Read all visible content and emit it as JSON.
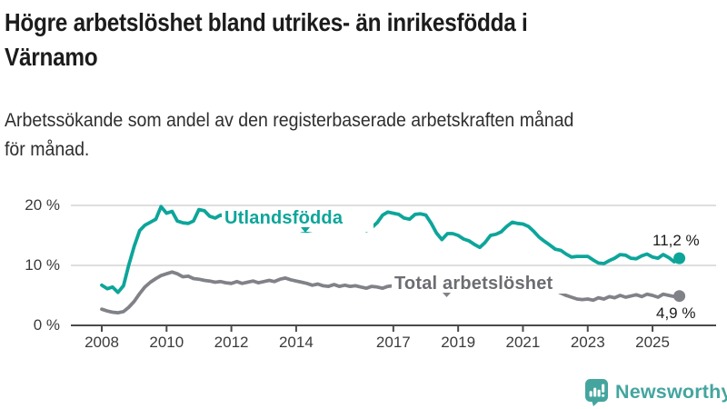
{
  "header": {
    "title_lines": [
      "Högre arbetslöshet bland utrikes- än inrikesfödda i",
      "Värnamo"
    ],
    "subtitle_lines": [
      "Arbetssökande som andel av den registerbaserade arbetskraften månad",
      "för månad."
    ]
  },
  "chart_data": {
    "type": "line",
    "title": "Högre arbetslöshet bland utrikes- än inrikesfödda i Värnamo",
    "subtitle": "Arbetssökande som andel av den registerbaserade arbetskraften månad för månad.",
    "unit": "%",
    "grid": "horizontal",
    "legend_position": "inline-labels",
    "xlim": [
      2008,
      2026
    ],
    "ylim": [
      0,
      21.5
    ],
    "xticks": [
      2008,
      2010,
      2012,
      2014,
      2017,
      2019,
      2021,
      2023,
      2025
    ],
    "xtick_labels": [
      "2008",
      "2010",
      "2012",
      "2014",
      "2017",
      "2019",
      "2021",
      "2023",
      "2025"
    ],
    "yticks": [
      0,
      10,
      20
    ],
    "ytick_labels": [
      "0 %",
      "10 %",
      "20 %"
    ],
    "x": [
      2008.0,
      2008.17,
      2008.33,
      2008.5,
      2008.67,
      2008.83,
      2009.0,
      2009.17,
      2009.33,
      2009.5,
      2009.67,
      2009.83,
      2010.0,
      2010.17,
      2010.33,
      2010.5,
      2010.67,
      2010.83,
      2011.0,
      2011.17,
      2011.33,
      2011.5,
      2011.67,
      2011.83,
      2012.0,
      2012.17,
      2012.33,
      2012.5,
      2012.67,
      2012.83,
      2013.0,
      2013.17,
      2013.33,
      2013.5,
      2013.67,
      2013.83,
      2014.0,
      2014.17,
      2014.33,
      2014.5,
      2014.67,
      2014.83,
      2015.0,
      2015.17,
      2015.33,
      2015.5,
      2015.67,
      2015.83,
      2016.0,
      2016.17,
      2016.33,
      2016.5,
      2016.67,
      2016.83,
      2017.0,
      2017.17,
      2017.33,
      2017.5,
      2017.67,
      2017.83,
      2018.0,
      2018.17,
      2018.33,
      2018.5,
      2018.67,
      2018.83,
      2019.0,
      2019.17,
      2019.33,
      2019.5,
      2019.67,
      2019.83,
      2020.0,
      2020.17,
      2020.33,
      2020.5,
      2020.67,
      2020.83,
      2021.0,
      2021.17,
      2021.33,
      2021.5,
      2021.67,
      2021.83,
      2022.0,
      2022.17,
      2022.33,
      2022.5,
      2022.67,
      2022.83,
      2023.0,
      2023.17,
      2023.33,
      2023.5,
      2023.67,
      2023.83,
      2024.0,
      2024.17,
      2024.33,
      2024.5,
      2024.67,
      2024.83,
      2025.0,
      2025.17,
      2025.33,
      2025.5,
      2025.67,
      2025.83
    ],
    "series": [
      {
        "name": "Utlandsfödda",
        "color": "#0da59a",
        "label_color": "#0da59a",
        "end_label": "11,2 %",
        "end_value": 11.2,
        "values": [
          6.7,
          6.1,
          6.4,
          5.5,
          6.6,
          10.0,
          13.2,
          15.8,
          16.7,
          17.2,
          17.7,
          19.8,
          18.7,
          19.0,
          17.4,
          17.1,
          17.0,
          17.4,
          19.3,
          19.1,
          18.2,
          17.9,
          18.4,
          18.1,
          18.3,
          18.6,
          18.0,
          17.8,
          18.1,
          17.6,
          17.4,
          17.6,
          17.1,
          16.8,
          16.5,
          16.4,
          16.2,
          15.8,
          15.7,
          15.9,
          16.1,
          16.3,
          16.4,
          16.2,
          16.5,
          16.0,
          16.2,
          16.4,
          16.6,
          15.8,
          16.3,
          17.1,
          18.4,
          18.9,
          18.7,
          18.5,
          17.9,
          17.7,
          18.5,
          18.6,
          18.4,
          17.0,
          15.4,
          14.3,
          15.3,
          15.3,
          15.0,
          14.4,
          14.1,
          13.5,
          13.0,
          13.8,
          15.0,
          15.2,
          15.6,
          16.5,
          17.2,
          17.0,
          16.9,
          16.5,
          15.7,
          14.7,
          14.0,
          13.4,
          12.7,
          12.5,
          11.9,
          11.4,
          11.5,
          11.5,
          11.5,
          10.9,
          10.4,
          10.3,
          10.8,
          11.2,
          11.8,
          11.7,
          11.2,
          11.1,
          11.6,
          11.9,
          11.4,
          11.2,
          11.8,
          11.3,
          10.6,
          11.2
        ]
      },
      {
        "name": "Total arbetslöshet",
        "color": "#818288",
        "label_color": "#6c6d72",
        "end_label": "4,9 %",
        "end_value": 4.9,
        "values": [
          2.7,
          2.4,
          2.2,
          2.1,
          2.3,
          3.0,
          4.0,
          5.3,
          6.4,
          7.2,
          7.8,
          8.3,
          8.6,
          8.9,
          8.6,
          8.1,
          8.2,
          7.8,
          7.7,
          7.5,
          7.4,
          7.2,
          7.3,
          7.1,
          7.0,
          7.3,
          7.0,
          7.2,
          7.4,
          7.1,
          7.3,
          7.5,
          7.3,
          7.7,
          7.9,
          7.6,
          7.4,
          7.2,
          7.0,
          6.7,
          6.9,
          6.6,
          6.5,
          6.8,
          6.5,
          6.7,
          6.5,
          6.6,
          6.4,
          6.2,
          6.5,
          6.4,
          6.2,
          6.5,
          6.6,
          6.5,
          6.3,
          6.4,
          6.2,
          6.3,
          6.2,
          6.0,
          6.1,
          5.9,
          6.0,
          5.9,
          5.8,
          5.7,
          5.8,
          5.6,
          5.8,
          6.0,
          6.2,
          6.8,
          7.4,
          7.8,
          8.0,
          8.1,
          8.2,
          8.0,
          7.6,
          7.2,
          6.8,
          6.3,
          5.8,
          5.4,
          5.0,
          4.7,
          4.4,
          4.3,
          4.4,
          4.2,
          4.6,
          4.4,
          4.8,
          4.6,
          5.0,
          4.7,
          4.9,
          5.1,
          4.8,
          5.2,
          5.0,
          4.7,
          5.2,
          5.0,
          4.8,
          4.9
        ]
      }
    ],
    "axis_color": "#4a4a4a",
    "grid_color": "#d9d9d9"
  },
  "branding": {
    "logo_text": "Newsworthy",
    "logo_color": "#44a59f",
    "logo_icon": "bar-chart-speech-bubble"
  }
}
